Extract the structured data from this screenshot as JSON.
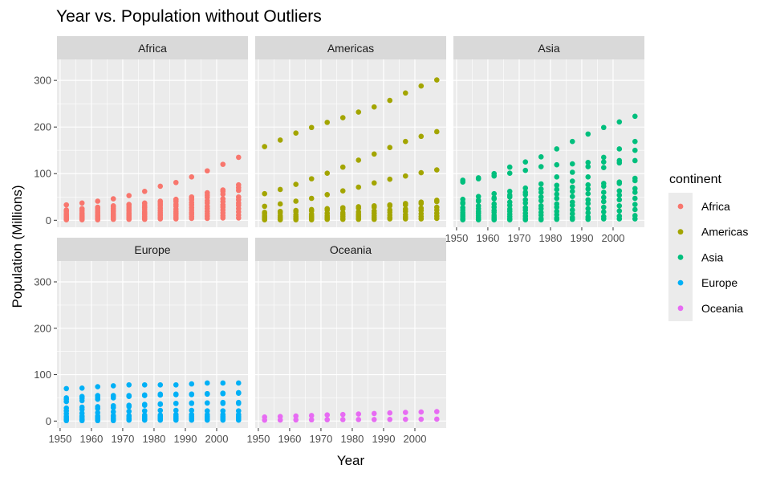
{
  "chart_data": {
    "type": "scatter",
    "title": "Year vs. Population without Outliers",
    "xlabel": "Year",
    "ylabel": "Population (Millions)",
    "xlim": [
      1949,
      2010
    ],
    "ylim": [
      -15,
      345
    ],
    "x_ticks": [
      1950,
      1960,
      1970,
      1980,
      1990,
      2000
    ],
    "y_ticks": [
      0,
      100,
      200,
      300
    ],
    "grid": true,
    "legend": {
      "title": "continent",
      "position": "right",
      "entries": [
        {
          "name": "Africa",
          "color": "#F8766D"
        },
        {
          "name": "Americas",
          "color": "#A3A500"
        },
        {
          "name": "Asia",
          "color": "#00BF7D"
        },
        {
          "name": "Europe",
          "color": "#00B0F6"
        },
        {
          "name": "Oceania",
          "color": "#E76BF3"
        }
      ]
    },
    "years": [
      1952,
      1957,
      1962,
      1967,
      1972,
      1977,
      1982,
      1987,
      1992,
      1997,
      2002,
      2007
    ],
    "panels": [
      {
        "name": "Africa",
        "color": "#F8766D",
        "series": [
          {
            "values": [
              33,
              37,
              41,
              46,
              53,
              62,
              73,
              81,
              93,
              106,
              120,
              135
            ]
          },
          {
            "values": [
              22,
              25,
              28,
              31,
              34,
              37,
              41,
              45,
              50,
              59,
              65,
              76
            ]
          },
          {
            "values": [
              21,
              24,
              26,
              29,
              33,
              36,
              39,
              44,
              48,
              54,
              62,
              70
            ]
          },
          {
            "values": [
              18,
              20,
              22,
              25,
              28,
              31,
              35,
              40,
              44,
              49,
              56,
              64
            ]
          },
          {
            "values": [
              14,
              16,
              18,
              21,
              24,
              27,
              31,
              34,
              38,
              42,
              46,
              50
            ]
          },
          {
            "values": [
              12,
              14,
              16,
              18,
              20,
              23,
              26,
              30,
              33,
              37,
              40,
              44
            ]
          },
          {
            "values": [
              10,
              11,
              12,
              14,
              16,
              18,
              21,
              24,
              27,
              30,
              33,
              37
            ]
          },
          {
            "values": [
              8,
              9,
              10,
              11,
              13,
              15,
              17,
              19,
              22,
              25,
              28,
              32
            ]
          },
          {
            "values": [
              6,
              7,
              8,
              9,
              10,
              12,
              13,
              15,
              17,
              19,
              22,
              25
            ]
          },
          {
            "values": [
              4,
              5,
              5,
              6,
              7,
              8,
              10,
              11,
              13,
              14,
              16,
              18
            ]
          },
          {
            "values": [
              2,
              3,
              3,
              4,
              4,
              5,
              6,
              7,
              8,
              9,
              10,
              11
            ]
          },
          {
            "values": [
              1,
              1,
              1,
              2,
              2,
              2,
              3,
              3,
              4,
              4,
              5,
              5
            ]
          }
        ]
      },
      {
        "name": "Americas",
        "color": "#A3A500",
        "series": [
          {
            "values": [
              158,
              172,
              187,
              199,
              210,
              220,
              232,
              243,
              257,
              273,
              288,
              301
            ]
          },
          {
            "values": [
              57,
              66,
              77,
              89,
              101,
              114,
              129,
              142,
              156,
              169,
              180,
              190
            ]
          },
          {
            "values": [
              30,
              35,
              41,
              47,
              55,
              63,
              71,
              80,
              88,
              95,
              102,
              108
            ]
          },
          {
            "values": [
              17,
              19,
              21,
              23,
              25,
              27,
              29,
              31,
              33,
              36,
              39,
              43
            ]
          },
          {
            "values": [
              14,
              16,
              18,
              20,
              22,
              24,
              26,
              28,
              31,
              33,
              36,
              40
            ]
          },
          {
            "values": [
              9,
              10,
              12,
              13,
              15,
              16,
              18,
              20,
              22,
              24,
              26,
              28
            ]
          },
          {
            "values": [
              6,
              7,
              8,
              9,
              10,
              12,
              13,
              15,
              17,
              19,
              21,
              22
            ]
          },
          {
            "values": [
              4,
              5,
              5,
              6,
              7,
              8,
              9,
              10,
              11,
              12,
              14,
              15
            ]
          },
          {
            "values": [
              2,
              2,
              3,
              3,
              4,
              4,
              5,
              6,
              6,
              7,
              8,
              9
            ]
          },
          {
            "values": [
              1,
              1,
              1,
              1,
              2,
              2,
              2,
              2,
              3,
              3,
              3,
              4
            ]
          }
        ]
      },
      {
        "name": "Asia",
        "color": "#00BF7D",
        "series": [
          {
            "values": [
              86,
              91,
              100,
              114,
              125,
              136,
              153,
              169,
              185,
              199,
              211,
              223
            ]
          },
          {
            "values": [
              82,
              89,
              95,
              101,
              107,
              115,
              119,
              121,
              124,
              125,
              128,
              150
            ]
          },
          {
            "values": [
              45,
              51,
              57,
              62,
              69,
              78,
              93,
              103,
              115,
              135,
              153,
              169
            ]
          },
          {
            "values": [
              38,
              43,
              48,
              54,
              60,
              67,
              75,
              84,
              93,
              113,
              123,
              128
            ]
          },
          {
            "values": [
              36,
              41,
              46,
              50,
              55,
              60,
              66,
              71,
              76,
              79,
              82,
              90
            ]
          },
          {
            "values": [
              27,
              31,
              35,
              39,
              44,
              50,
              56,
              62,
              67,
              73,
              79,
              85
            ]
          },
          {
            "values": [
              22,
              25,
              28,
              32,
              37,
              42,
              47,
              51,
              57,
              60,
              63,
              68
            ]
          },
          {
            "values": [
              17,
              19,
              21,
              24,
              27,
              31,
              35,
              39,
              44,
              49,
              54,
              60
            ]
          },
          {
            "values": [
              13,
              15,
              17,
              19,
              22,
              25,
              28,
              32,
              36,
              40,
              44,
              47
            ]
          },
          {
            "values": [
              9,
              10,
              11,
              13,
              15,
              17,
              19,
              22,
              25,
              28,
              31,
              34
            ]
          },
          {
            "values": [
              5,
              6,
              7,
              8,
              9,
              11,
              12,
              14,
              16,
              18,
              20,
              23
            ]
          },
          {
            "values": [
              2,
              2,
              3,
              3,
              4,
              4,
              5,
              6,
              7,
              8,
              9,
              10
            ]
          },
          {
            "values": [
              1,
              1,
              1,
              1,
              1,
              1,
              2,
              2,
              2,
              3,
              3,
              3
            ]
          }
        ]
      },
      {
        "name": "Europe",
        "color": "#00B0F6",
        "series": [
          {
            "values": [
              70,
              71,
              74,
              76,
              78,
              78,
              78,
              78,
              80,
              82,
              82,
              82
            ]
          },
          {
            "values": [
              50,
              53,
              55,
              55,
              55,
              56,
              57,
              57,
              58,
              59,
              60,
              61
            ]
          },
          {
            "values": [
              47,
              49,
              51,
              53,
              54,
              55,
              56,
              57,
              57,
              58,
              59,
              60
            ]
          },
          {
            "values": [
              42,
              44,
              47,
              50,
              53,
              56,
              58,
              58,
              58,
              59,
              60,
              61
            ]
          },
          {
            "values": [
              28,
              30,
              31,
              33,
              34,
              36,
              37,
              38,
              39,
              39,
              40,
              40
            ]
          },
          {
            "values": [
              22,
              25,
              27,
              29,
              31,
              34,
              36,
              38,
              38,
              39,
              38,
              38
            ]
          },
          {
            "values": [
              16,
              17,
              18,
              20,
              21,
              22,
              23,
              23,
              23,
              22,
              22,
              22
            ]
          },
          {
            "values": [
              10,
              11,
              11,
              12,
              12,
              13,
              13,
              14,
              14,
              14,
              14,
              14
            ]
          },
          {
            "values": [
              8,
              9,
              9,
              10,
              10,
              10,
              10,
              10,
              10,
              10,
              10,
              10
            ]
          },
          {
            "values": [
              5,
              5,
              6,
              6,
              6,
              7,
              7,
              7,
              7,
              8,
              8,
              8
            ]
          },
          {
            "values": [
              3,
              3,
              4,
              4,
              4,
              4,
              5,
              5,
              5,
              5,
              5,
              5
            ]
          },
          {
            "values": [
              1,
              1,
              1,
              1,
              2,
              2,
              2,
              2,
              2,
              2,
              2,
              2
            ]
          }
        ]
      },
      {
        "name": "Oceania",
        "color": "#E76BF3",
        "series": [
          {
            "values": [
              8.7,
              9.7,
              10.8,
              11.9,
              13.2,
              14.1,
              15.2,
              16.3,
              17.5,
              18.6,
              19.5,
              20.4
            ]
          },
          {
            "values": [
              1.99,
              2.14,
              2.49,
              2.73,
              2.93,
              3.16,
              3.21,
              3.32,
              3.44,
              3.68,
              3.91,
              4.12
            ]
          }
        ]
      }
    ]
  }
}
